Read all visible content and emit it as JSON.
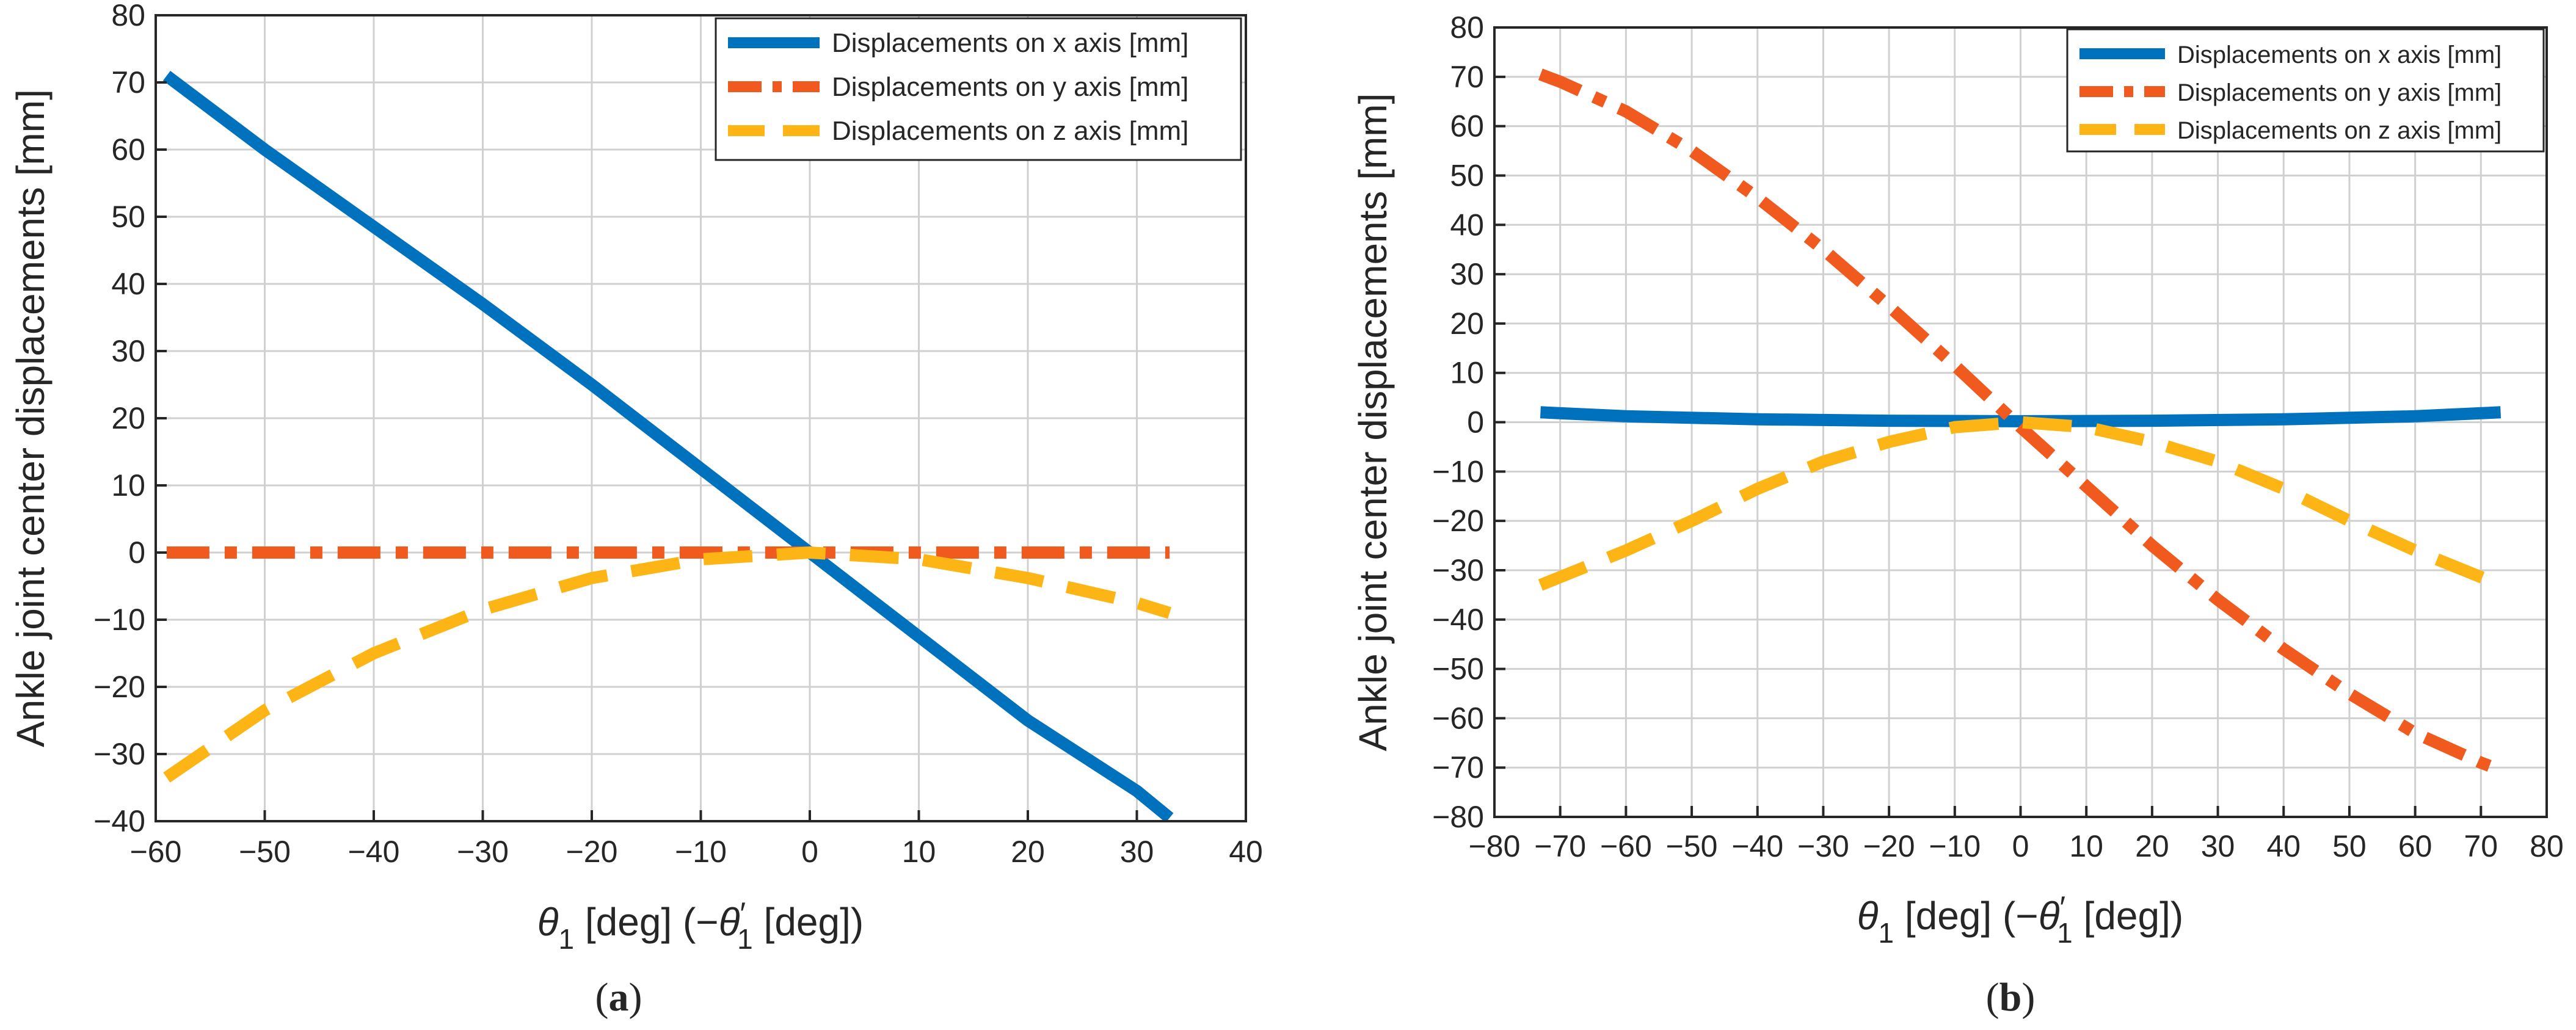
{
  "colors": {
    "x_series": "#0072BD",
    "y_series": "#F05A1E",
    "z_series": "#FDB515",
    "grid": "#d0d0d0",
    "axis": "#262626"
  },
  "chart_data": [
    {
      "type": "line",
      "panel": "(a)",
      "panel_letter": "a",
      "ylabel": "Ankle joint center displacements [mm]",
      "xlabel": {
        "theta": "θ",
        "sub": "1",
        "mid": " [deg] (−",
        "prime": "′",
        "end": " [deg])"
      },
      "xlim": [
        -60,
        40
      ],
      "ylim": [
        -40,
        80
      ],
      "xticks": [
        -60,
        -50,
        -40,
        -30,
        -20,
        -10,
        0,
        10,
        20,
        30,
        40
      ],
      "yticks": [
        -40,
        -30,
        -20,
        -10,
        0,
        10,
        20,
        30,
        40,
        50,
        60,
        70,
        80
      ],
      "grid": true,
      "legend_position": "top-right",
      "series": [
        {
          "name": "Displacements on x axis [mm]",
          "style": "solid",
          "color_key": "x_series",
          "x": [
            -59,
            -50,
            -40,
            -30,
            -20,
            -10,
            0,
            10,
            20,
            30,
            33
          ],
          "y": [
            71,
            60,
            48.5,
            37,
            25,
            12.5,
            0,
            -12.5,
            -25,
            -35.5,
            -39.5
          ]
        },
        {
          "name": "Displacements on y axis [mm]",
          "style": "dashdot",
          "color_key": "y_series",
          "x": [
            -59,
            -40,
            -20,
            0,
            20,
            33
          ],
          "y": [
            0,
            0,
            0,
            0,
            0,
            0
          ]
        },
        {
          "name": "Displacements on z axis [mm]",
          "style": "dashed",
          "color_key": "z_series",
          "x": [
            -59,
            -50,
            -40,
            -30,
            -20,
            -10,
            0,
            10,
            20,
            30,
            33
          ],
          "y": [
            -33.5,
            -23.5,
            -15,
            -8.5,
            -3.8,
            -1,
            0,
            -1,
            -3.8,
            -7.5,
            -9
          ]
        }
      ]
    },
    {
      "type": "line",
      "panel": "(b)",
      "panel_letter": "b",
      "ylabel": "Ankle joint center displacements [mm]",
      "xlabel": {
        "theta": "θ",
        "sub": "1",
        "mid": " [deg] (−",
        "prime": "′",
        "end": " [deg])"
      },
      "xlim": [
        -80,
        80
      ],
      "ylim": [
        -80,
        80
      ],
      "xticks": [
        -80,
        -70,
        -60,
        -50,
        -40,
        -30,
        -20,
        -10,
        0,
        10,
        20,
        30,
        40,
        50,
        60,
        70,
        80
      ],
      "yticks": [
        -80,
        -70,
        -60,
        -50,
        -40,
        -30,
        -20,
        -10,
        0,
        10,
        20,
        30,
        40,
        50,
        60,
        70,
        80
      ],
      "grid": true,
      "legend_position": "top-right",
      "series": [
        {
          "name": "Displacements on x axis [mm]",
          "style": "solid",
          "color_key": "x_series",
          "x": [
            -73,
            -60,
            -40,
            -20,
            0,
            20,
            40,
            60,
            73
          ],
          "y": [
            2,
            1.2,
            0.6,
            0.3,
            0.2,
            0.3,
            0.6,
            1.2,
            2
          ]
        },
        {
          "name": "Displacements on y axis [mm]",
          "style": "dashdot",
          "color_key": "y_series",
          "x": [
            -73,
            -70,
            -60,
            -50,
            -40,
            -30,
            -20,
            -10,
            0,
            10,
            20,
            30,
            40,
            50,
            60,
            70,
            73
          ],
          "y": [
            70.5,
            69,
            63,
            55,
            45.5,
            35,
            23.5,
            11.5,
            -1,
            -13,
            -25,
            -36,
            -46,
            -55,
            -63,
            -69,
            -70.5
          ]
        },
        {
          "name": "Displacements on z axis [mm]",
          "style": "dashed",
          "color_key": "z_series",
          "x": [
            -73,
            -60,
            -50,
            -40,
            -30,
            -20,
            -10,
            0,
            10,
            20,
            30,
            40,
            50,
            60,
            73
          ],
          "y": [
            -33,
            -26,
            -20,
            -13.5,
            -8,
            -4,
            -1,
            0,
            -1,
            -4,
            -8,
            -13.5,
            -20,
            -26,
            -33
          ]
        }
      ]
    }
  ]
}
